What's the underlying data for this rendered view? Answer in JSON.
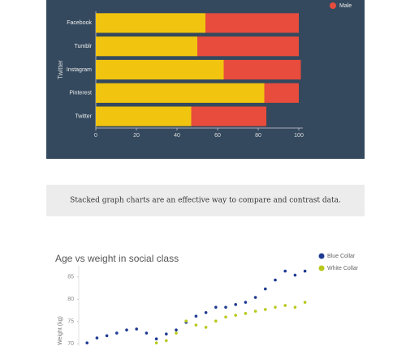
{
  "chart_data": [
    {
      "type": "stacked-barh",
      "categories": [
        "Facebook",
        "Tumblr",
        "Instagram",
        "Pinterest",
        "Twitter"
      ],
      "y_label": "Twitter",
      "series": [
        {
          "color": "#f1c40f",
          "values": [
            54,
            50,
            63,
            83,
            47
          ]
        },
        {
          "name": "Male",
          "color": "#e74c3c",
          "values": [
            46,
            50,
            38,
            17,
            37
          ]
        }
      ],
      "xlim": [
        0,
        102
      ],
      "xticks": [
        0,
        20,
        40,
        60,
        80,
        100
      ]
    },
    {
      "type": "scatter",
      "title": "Age vs weight in social class",
      "y_label": "Weight (kg)",
      "series": [
        {
          "name": "Blue Collar",
          "color": "#1f3a93",
          "x": [
            0,
            1,
            2,
            3,
            4,
            5,
            6,
            7,
            8,
            9,
            10,
            11,
            12,
            13,
            14,
            15,
            16,
            17,
            18,
            19,
            20,
            21,
            22
          ],
          "values": [
            70.2,
            71.3,
            71.8,
            72.4,
            73.1,
            73.3,
            72.4,
            71.1,
            72.2,
            73.1,
            74.8,
            76.2,
            77.0,
            78.2,
            78.2,
            78.8,
            79.3,
            80.4,
            82.3,
            84.3,
            86.3,
            85.4,
            86.3
          ]
        },
        {
          "name": "White Collar",
          "color": "#b8c81a",
          "x": [
            7,
            8,
            9,
            10,
            11,
            12,
            13,
            14,
            15,
            16,
            17,
            18,
            19,
            20,
            21,
            22
          ],
          "values": [
            70.2,
            70.7,
            72.4,
            75.1,
            74.2,
            73.7,
            75.1,
            76.0,
            76.4,
            76.8,
            77.3,
            77.7,
            78.2,
            78.6,
            78.2,
            79.3
          ]
        }
      ],
      "xlim": [
        -1,
        24
      ],
      "ylim": [
        69.5,
        87.5
      ],
      "yticks": [
        70,
        75,
        80,
        85
      ]
    }
  ],
  "caption": "Stacked graph charts are an effective way to compare and contrast data."
}
